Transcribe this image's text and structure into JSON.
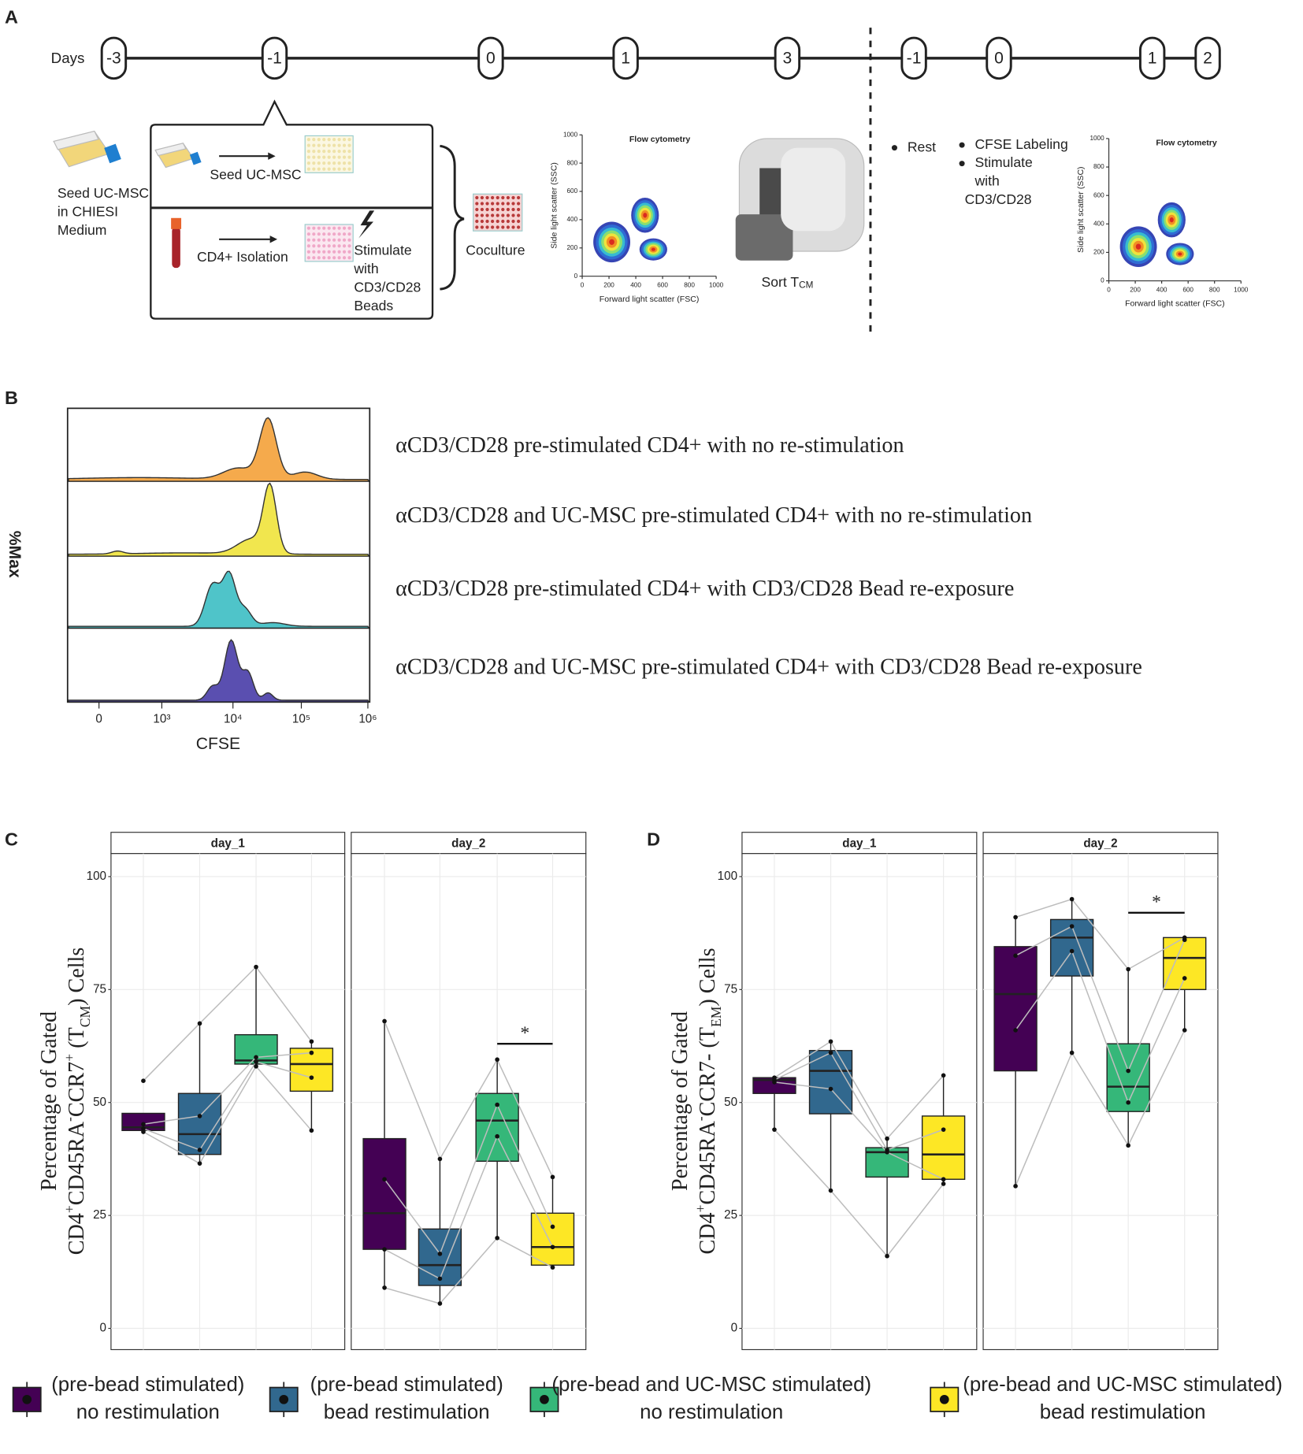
{
  "panel_a": {
    "letter": "A",
    "days_label": "Days",
    "days": [
      -3,
      -1,
      0,
      1,
      3,
      -1,
      0,
      1,
      2
    ],
    "seed_text": [
      "Seed UC-MSC",
      "in CHIESI",
      "Medium"
    ],
    "seed_ucmsc": "Seed UC-MSC",
    "cd4_isolation": "CD4+  Isolation",
    "stimulate": [
      "Stimulate",
      "with",
      "CD3/CD28",
      "Beads"
    ],
    "coculture": "Coculture",
    "flow_title": "Flow cytometry",
    "ssc": "Side light scatter (SSC)",
    "fsc": "Forward light scatter (FSC)",
    "flow_ticks": [
      0,
      200,
      400,
      600,
      800,
      1000
    ],
    "sort": "Sort T",
    "sort_sub": "CM",
    "rest": "Rest",
    "cfse_labeling": "CFSE Labeling",
    "stimulate2": [
      "Stimulate",
      "with",
      "CD3/CD28"
    ]
  },
  "panel_b": {
    "letter": "B",
    "y_label": "%Max",
    "x_label": "CFSE",
    "x_ticks": [
      "0",
      "10³",
      "10⁴",
      "10⁵",
      "10⁶"
    ],
    "rows": [
      "αCD3/CD28 pre-stimulated CD4+ with no re-stimulation",
      "αCD3/CD28 and UC-MSC pre-stimulated CD4+ with no re-stimulation",
      "αCD3/CD28 pre-stimulated CD4+ with CD3/CD28 Bead re-exposure",
      "αCD3/CD28 and UC-MSC pre-stimulated CD4+ with CD3/CD28 Bead re-exposure"
    ]
  },
  "groups": [
    {
      "name_lines": [
        "(pre-bead stimulated)",
        "no restimulation"
      ],
      "color": "#440154"
    },
    {
      "name_lines": [
        "(pre-bead stimulated)",
        "bead restimulation"
      ],
      "color": "#31688e"
    },
    {
      "name_lines": [
        "(pre-bead and UC-MSC stimulated)",
        "no restimulation"
      ],
      "color": "#35b779"
    },
    {
      "name_lines": [
        "(pre-bead and UC-MSC stimulated)",
        "bead restimulation"
      ],
      "color": "#fde725"
    }
  ],
  "chart_data": [
    {
      "type": "box",
      "letter": "C",
      "y_label": "Percentage of Gated",
      "y_label_2": [
        {
          "text": "CD4"
        },
        {
          "text": "+",
          "pos": "super"
        },
        {
          "text": "CD45RA"
        },
        {
          "text": "-",
          "pos": "super"
        },
        {
          "text": "CCR7"
        },
        {
          "text": "+",
          "pos": "super"
        },
        {
          "text": " (T"
        },
        {
          "text": "CM",
          "pos": "sub"
        },
        {
          "text": ") Cells"
        }
      ],
      "ylim": [
        -4.7,
        105.1
      ],
      "yticks": [
        0,
        25,
        50,
        75,
        100
      ],
      "grid": true,
      "panels": [
        {
          "facet": "day_1",
          "boxes": [
            {
              "lower": 43.5,
              "q1": 43.8,
              "median": 44.5,
              "q3": 47.6,
              "upper": 47.6,
              "points": [
                54.8,
                45.2,
                44.2,
                43.5
              ]
            },
            {
              "lower": 36.5,
              "q1": 38.5,
              "median": 43,
              "q3": 52,
              "upper": 67.5,
              "points": [
                67.5,
                47,
                39.5,
                36.5
              ]
            },
            {
              "lower": 58,
              "q1": 58.5,
              "median": 59.3,
              "q3": 65,
              "upper": 80,
              "points": [
                80,
                60,
                59,
                58
              ]
            },
            {
              "lower": 43.8,
              "q1": 52.5,
              "median": 58.5,
              "q3": 62,
              "upper": 63.5,
              "points": [
                63.5,
                61,
                55.5,
                43.8
              ]
            }
          ]
        },
        {
          "facet": "day_2",
          "boxes": [
            {
              "lower": 9,
              "q1": 17.5,
              "median": 25.5,
              "q3": 42,
              "upper": 68,
              "points": [
                68,
                33,
                17.5,
                9
              ]
            },
            {
              "lower": 5.5,
              "q1": 9.5,
              "median": 14,
              "q3": 22,
              "upper": 37.5,
              "points": [
                37.5,
                16.5,
                11,
                5.5
              ]
            },
            {
              "lower": 20,
              "q1": 37,
              "median": 46,
              "q3": 52,
              "upper": 59.5,
              "points": [
                59.5,
                49.5,
                42.5,
                20
              ]
            },
            {
              "lower": 13.5,
              "q1": 14,
              "median": 18,
              "q3": 25.5,
              "upper": 33.5,
              "points": [
                33.5,
                22.5,
                18,
                13.5
              ]
            }
          ],
          "significance": {
            "from": 2,
            "to": 3,
            "y": 63,
            "label": "*"
          }
        }
      ]
    },
    {
      "type": "box",
      "letter": "D",
      "y_label": "Percentage of Gated",
      "y_label_2": [
        {
          "text": "CD4"
        },
        {
          "text": "+",
          "pos": "super"
        },
        {
          "text": "CD45RA"
        },
        {
          "text": "-",
          "pos": "super"
        },
        {
          "text": "CCR7- (T"
        },
        {
          "text": "EM",
          "pos": "sub"
        },
        {
          "text": ") Cells"
        }
      ],
      "ylim": [
        -4.7,
        105.1
      ],
      "yticks": [
        0,
        25,
        50,
        75,
        100
      ],
      "grid": true,
      "panels": [
        {
          "facet": "day_1",
          "boxes": [
            {
              "lower": 44,
              "q1": 52,
              "median": 55,
              "q3": 55.5,
              "upper": 55.5,
              "points": [
                55.5,
                55,
                54.5,
                44
              ]
            },
            {
              "lower": 30.5,
              "q1": 47.5,
              "median": 57,
              "q3": 61.5,
              "upper": 63.5,
              "points": [
                63.5,
                61,
                53,
                30.5
              ]
            },
            {
              "lower": 16,
              "q1": 33.5,
              "median": 39,
              "q3": 40,
              "upper": 42,
              "points": [
                42,
                39.5,
                39,
                16
              ]
            },
            {
              "lower": 32,
              "q1": 33,
              "median": 38.5,
              "q3": 47,
              "upper": 56,
              "points": [
                56,
                44,
                33,
                32
              ]
            }
          ]
        },
        {
          "facet": "day_2",
          "boxes": [
            {
              "lower": 31.5,
              "q1": 57,
              "median": 74,
              "q3": 84.5,
              "upper": 91,
              "points": [
                91,
                82.5,
                66,
                31.5
              ]
            },
            {
              "lower": 61,
              "q1": 78,
              "median": 86.5,
              "q3": 90.5,
              "upper": 95,
              "points": [
                95,
                89,
                83.5,
                61
              ]
            },
            {
              "lower": 40.5,
              "q1": 48,
              "median": 53.5,
              "q3": 63,
              "upper": 79.5,
              "points": [
                79.5,
                57,
                50,
                40.5
              ]
            },
            {
              "lower": 66,
              "q1": 75,
              "median": 82,
              "q3": 86.5,
              "upper": 86.5,
              "points": [
                86.5,
                86,
                77.5,
                66
              ]
            }
          ],
          "significance": {
            "from": 2,
            "to": 3,
            "y": 92,
            "label": "*"
          }
        }
      ]
    }
  ]
}
